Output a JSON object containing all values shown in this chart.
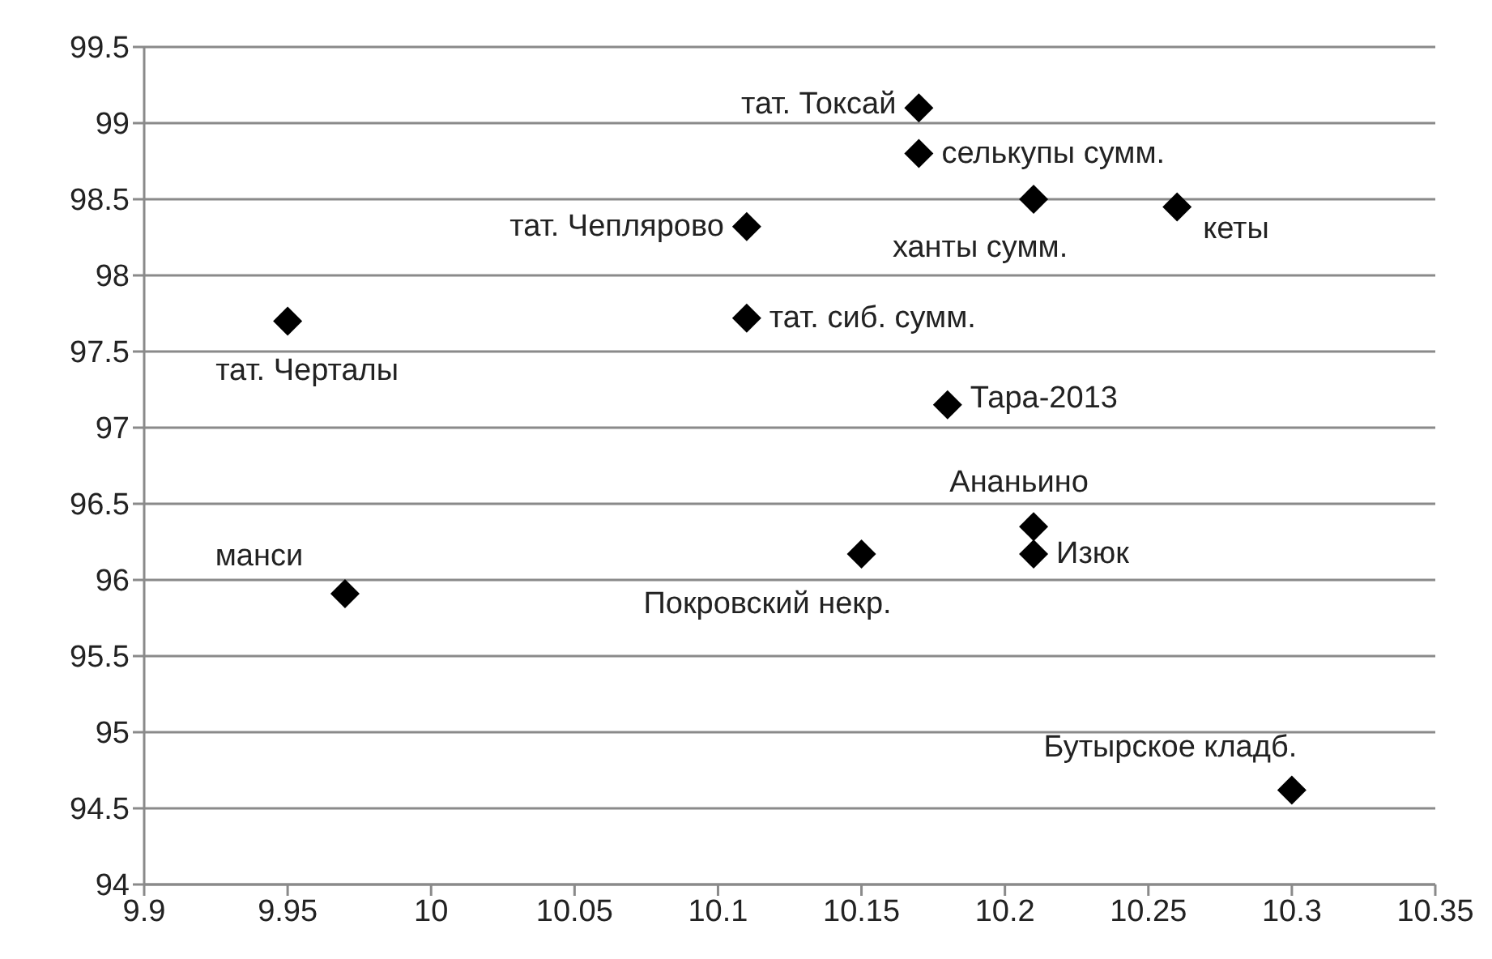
{
  "chart_data": {
    "type": "scatter",
    "x": [
      10.17,
      10.17,
      10.21,
      10.26,
      10.11,
      10.11,
      9.95,
      10.18,
      10.21,
      10.21,
      10.15,
      9.97,
      10.3
    ],
    "series": [
      {
        "color": "#000000",
        "values": [
          99.1,
          98.8,
          98.5,
          98.45,
          98.32,
          97.72,
          97.7,
          97.15,
          96.35,
          96.17,
          96.17,
          95.91,
          94.62
        ]
      }
    ],
    "annotations": [
      {
        "text": "тат. Токсай",
        "x": 10.17,
        "y": 99.1
      },
      {
        "text": "селькупы сумм.",
        "x": 10.17,
        "y": 98.8
      },
      {
        "text": "ханты сумм.",
        "x": 10.21,
        "y": 98.5
      },
      {
        "text": "кеты",
        "x": 10.26,
        "y": 98.45
      },
      {
        "text": "тат. Чеплярово",
        "x": 10.11,
        "y": 98.32
      },
      {
        "text": "тат. сиб. сумм.",
        "x": 10.11,
        "y": 97.72
      },
      {
        "text": "тат. Черталы",
        "x": 9.95,
        "y": 97.7
      },
      {
        "text": "Тара-2013",
        "x": 10.18,
        "y": 97.15
      },
      {
        "text": "Ананьино",
        "x": 10.21,
        "y": 96.35
      },
      {
        "text": "Изюк",
        "x": 10.21,
        "y": 96.17
      },
      {
        "text": "Покровский некр.",
        "x": 10.15,
        "y": 96.17
      },
      {
        "text": "манси",
        "x": 9.97,
        "y": 95.91
      },
      {
        "text": "Бутырское кладб.",
        "x": 10.3,
        "y": 94.62
      }
    ],
    "xlim": [
      9.9,
      10.35
    ],
    "xticks": [
      9.9,
      9.95,
      10,
      10.05,
      10.1,
      10.15,
      10.2,
      10.25,
      10.3,
      10.35
    ],
    "ylim": [
      94,
      99.5
    ],
    "yticks": [
      94,
      94.5,
      95,
      95.5,
      96,
      96.5,
      97,
      97.5,
      98,
      98.5,
      99,
      99.5
    ],
    "grid": "y",
    "marker": "diamond",
    "legend": false
  }
}
